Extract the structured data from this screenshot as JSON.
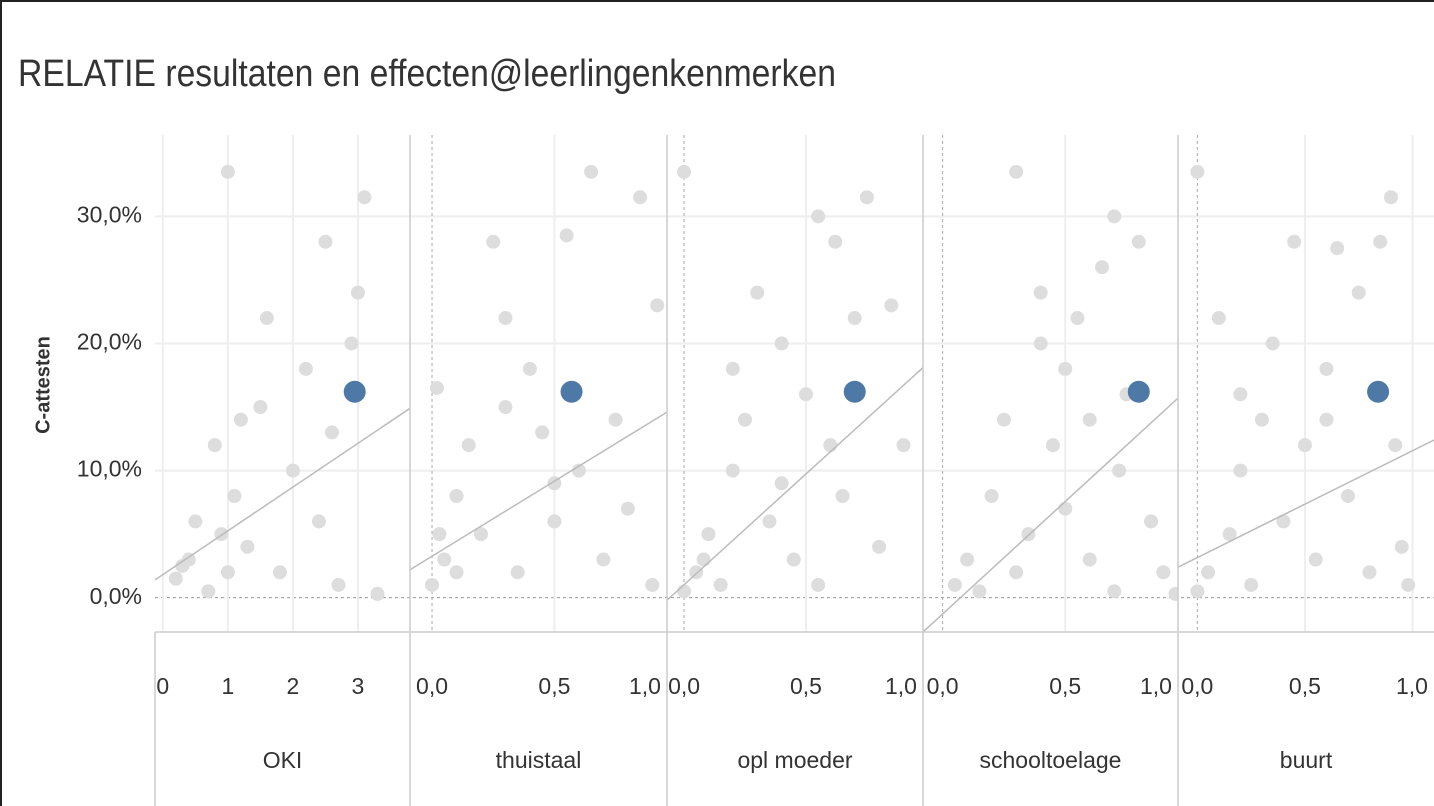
{
  "chart_data": {
    "type": "scatter",
    "title": "RELATIE resultaten en effecten@leerlingenkenmerken",
    "y_label": "C-attesten",
    "ylim": [
      -2.7,
      36.4
    ],
    "yticks": [
      {
        "value": 0,
        "label": "0,0%"
      },
      {
        "value": 10,
        "label": "10,0%"
      },
      {
        "value": 20,
        "label": "20,0%"
      },
      {
        "value": 30,
        "label": "30,0%"
      }
    ],
    "point_color": "#dddddd",
    "highlight_color": "#4e79a7",
    "trend_color": "#bbbbbb",
    "panels": [
      {
        "name": "OKI",
        "xlim": [
          -0.12,
          3.8
        ],
        "xticks": [
          0,
          1,
          2,
          3
        ],
        "x": [
          0.2,
          0.4,
          0.5,
          0.7,
          0.8,
          1.0,
          1.1,
          1.3,
          1.5,
          1.6,
          1.8,
          2.0,
          2.2,
          2.4,
          2.5,
          2.7,
          2.9,
          3.1,
          3.3,
          0.9,
          1.2,
          0.3,
          3.0,
          2.6,
          1.0
        ],
        "y": [
          1.5,
          3,
          6,
          0.5,
          12,
          33.5,
          8,
          4,
          15,
          22,
          2,
          10,
          18,
          6,
          28,
          1,
          20,
          31.5,
          0.3,
          5,
          14,
          2.5,
          24,
          13,
          2
        ],
        "highlight": {
          "x": 2.95,
          "y": 16.2
        },
        "trend": {
          "x": [
            -0.12,
            3.8
          ],
          "y": [
            1.4,
            14.9
          ]
        }
      },
      {
        "name": "thuistaal",
        "xlim": [
          -0.09,
          0.96
        ],
        "xticks": [
          {
            "value": 0,
            "label": "0,0"
          },
          {
            "value": 0.5,
            "label": "0,5"
          },
          {
            "value": 1,
            "label": "1,0"
          }
        ],
        "x": [
          0.0,
          0.02,
          0.05,
          0.1,
          0.15,
          0.2,
          0.25,
          0.3,
          0.35,
          0.4,
          0.45,
          0.5,
          0.55,
          0.6,
          0.65,
          0.7,
          0.75,
          0.8,
          0.85,
          0.9,
          0.92,
          0.03,
          0.1,
          0.3,
          0.5
        ],
        "y": [
          1,
          16.5,
          3,
          8,
          12,
          5,
          28,
          22,
          2,
          18,
          13,
          6,
          28.5,
          10,
          33.5,
          3,
          14,
          7,
          31.5,
          1,
          23,
          5,
          2,
          15,
          9
        ],
        "highlight": {
          "x": 0.57,
          "y": 16.2
        },
        "trend": {
          "x": [
            -0.09,
            0.96
          ],
          "y": [
            2.2,
            14.6
          ]
        }
      },
      {
        "name": "opl moeder",
        "xlim": [
          -0.07,
          0.98
        ],
        "xticks": [
          {
            "value": 0,
            "label": "0,0"
          },
          {
            "value": 0.5,
            "label": "0,5"
          },
          {
            "value": 1,
            "label": "1,0"
          }
        ],
        "x": [
          0.0,
          0.05,
          0.1,
          0.15,
          0.2,
          0.25,
          0.3,
          0.35,
          0.4,
          0.45,
          0.5,
          0.55,
          0.6,
          0.62,
          0.65,
          0.7,
          0.75,
          0.8,
          0.85,
          0.9,
          0.0,
          0.08,
          0.4,
          0.2,
          0.55
        ],
        "y": [
          33.5,
          2,
          5,
          1,
          10,
          14,
          24,
          6,
          20,
          3,
          16,
          30,
          12,
          28,
          8,
          22,
          31.5,
          4,
          23,
          12,
          0.5,
          3,
          9,
          18,
          1
        ],
        "highlight": {
          "x": 0.7,
          "y": 16.2
        },
        "trend": {
          "x": [
            -0.07,
            0.98
          ],
          "y": [
            -0.2,
            18.1
          ]
        }
      },
      {
        "name": "schooltoelage",
        "xlim": [
          -0.08,
          0.96
        ],
        "xticks": [
          {
            "value": 0,
            "label": "0,0"
          },
          {
            "value": 0.5,
            "label": "0,5"
          },
          {
            "value": 1,
            "label": "1,0"
          }
        ],
        "x": [
          0.05,
          0.1,
          0.15,
          0.2,
          0.25,
          0.3,
          0.35,
          0.4,
          0.45,
          0.5,
          0.55,
          0.6,
          0.65,
          0.7,
          0.72,
          0.75,
          0.8,
          0.85,
          0.9,
          0.3,
          0.5,
          0.6,
          0.4,
          0.7,
          0.95
        ],
        "y": [
          1,
          3,
          0.5,
          8,
          14,
          33.5,
          5,
          24,
          12,
          18,
          22,
          3,
          26,
          30,
          10,
          16,
          28,
          6,
          2,
          2,
          7,
          14,
          20,
          0.5,
          0.3
        ],
        "highlight": {
          "x": 0.8,
          "y": 16.2
        },
        "trend": {
          "x": [
            -0.08,
            0.96
          ],
          "y": [
            -2.7,
            15.7
          ]
        }
      },
      {
        "name": "buurt",
        "xlim": [
          -0.09,
          1.1
        ],
        "xticks": [
          {
            "value": 0,
            "label": "0,0"
          },
          {
            "value": 0.5,
            "label": "0,5"
          },
          {
            "value": 1,
            "label": "1,0"
          }
        ],
        "x": [
          0.0,
          0.05,
          0.1,
          0.15,
          0.2,
          0.25,
          0.3,
          0.35,
          0.4,
          0.45,
          0.5,
          0.55,
          0.6,
          0.65,
          0.7,
          0.75,
          0.8,
          0.85,
          0.9,
          0.92,
          0.95,
          0.0,
          0.2,
          0.6,
          0.98
        ],
        "y": [
          33.5,
          2,
          22,
          5,
          10,
          1,
          14,
          20,
          6,
          28,
          12,
          3,
          18,
          27.5,
          8,
          24,
          2,
          28,
          31.5,
          12,
          4,
          0.5,
          16,
          14,
          1
        ],
        "highlight": {
          "x": 0.84,
          "y": 16.2
        },
        "trend": {
          "x": [
            -0.09,
            1.1
          ],
          "y": [
            2.4,
            12.4
          ]
        }
      }
    ]
  }
}
